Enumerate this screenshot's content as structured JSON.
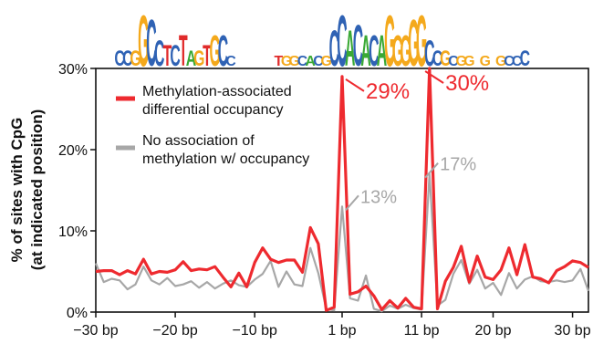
{
  "chart_data": {
    "type": "line",
    "ylabel_line1": "% of sites with CpG",
    "ylabel_line2": "(at indicated position)",
    "xlabel": "",
    "xlim": [
      -30,
      32
    ],
    "ylim": [
      0,
      30
    ],
    "x_ticks": [
      {
        "value": -30,
        "label": "−30 bp"
      },
      {
        "value": -20,
        "label": "−20 bp"
      },
      {
        "value": -10,
        "label": "−10 bp"
      },
      {
        "value": 1,
        "label": "1 bp"
      },
      {
        "value": 11,
        "label": "11 bp"
      },
      {
        "value": 20,
        "label": "20 bp"
      },
      {
        "value": 30,
        "label": "30 bp"
      }
    ],
    "y_ticks": [
      {
        "value": 0,
        "label": "0%"
      },
      {
        "value": 10,
        "label": "10%"
      },
      {
        "value": 20,
        "label": "20%"
      },
      {
        "value": 30,
        "label": "30%"
      }
    ],
    "legend": [
      {
        "line1": "Methylation-associated",
        "line2": "differential occupancy",
        "color": "#ee2a2f"
      },
      {
        "line1": "No association of",
        "line2": "methylation w/ occupancy",
        "color": "#a7a7a7"
      }
    ],
    "series": [
      {
        "color": "#ee2a2f",
        "x": [
          -30,
          -29,
          -28,
          -27,
          -26,
          -25,
          -24,
          -23,
          -22,
          -21,
          -20,
          -19,
          -18,
          -17,
          -16,
          -15,
          -14,
          -13,
          -12,
          -11,
          -10,
          -9,
          -8,
          -7,
          -6,
          -5,
          -4,
          -3,
          -2,
          -1,
          0,
          1,
          2,
          3,
          4,
          5,
          6,
          7,
          8,
          9,
          10,
          11,
          12,
          13,
          14,
          15,
          16,
          17,
          18,
          19,
          20,
          21,
          22,
          23,
          24,
          25,
          26,
          27,
          28,
          29,
          30,
          31,
          32
        ],
        "values": [
          5.0,
          5.1,
          5.1,
          4.6,
          5.1,
          4.7,
          6.5,
          4.7,
          5.0,
          4.9,
          5.2,
          6.2,
          5.1,
          5.3,
          5.2,
          5.6,
          4.3,
          3.1,
          4.8,
          3.1,
          6.1,
          7.9,
          6.5,
          6.1,
          6.4,
          6.4,
          4.9,
          10.4,
          8.4,
          0.2,
          0.6,
          29,
          2.2,
          2.5,
          3.2,
          2.0,
          0.3,
          1.4,
          0.5,
          1.7,
          0.6,
          0.4,
          30,
          0.4,
          3.8,
          5.5,
          8.1,
          3.7,
          6.9,
          4.3,
          4.0,
          5.2,
          7.9,
          4.6,
          8.3,
          4.3,
          4.1,
          3.6,
          5.1,
          5.6,
          6.3,
          6.1,
          5.5
        ]
      },
      {
        "color": "#a7a7a7",
        "x": [
          -30,
          -29,
          -28,
          -27,
          -26,
          -25,
          -24,
          -23,
          -22,
          -21,
          -20,
          -19,
          -18,
          -17,
          -16,
          -15,
          -14,
          -13,
          -12,
          -11,
          -10,
          -9,
          -8,
          -7,
          -6,
          -5,
          -4,
          -3,
          -2,
          -1,
          0,
          1,
          2,
          3,
          4,
          5,
          6,
          7,
          8,
          9,
          10,
          11,
          12,
          13,
          14,
          15,
          16,
          17,
          18,
          19,
          20,
          21,
          22,
          23,
          24,
          25,
          26,
          27,
          28,
          29,
          30,
          31,
          32
        ],
        "values": [
          6.0,
          3.7,
          4.1,
          3.9,
          2.8,
          3.4,
          5.6,
          3.9,
          3.4,
          4.2,
          3.2,
          3.4,
          3.8,
          3.0,
          3.7,
          2.9,
          3.5,
          3.9,
          3.3,
          3.1,
          4.0,
          4.7,
          6.3,
          3.1,
          5.0,
          3.4,
          3.2,
          7.9,
          4.8,
          0.4,
          0.2,
          13,
          1.7,
          1.4,
          4.5,
          0.4,
          0.1,
          0.8,
          0.4,
          0.9,
          0.5,
          0.3,
          17,
          0.8,
          1.5,
          4.7,
          6.4,
          3.5,
          5.2,
          2.9,
          3.6,
          2.1,
          4.8,
          2.9,
          4.0,
          4.4,
          3.8,
          3.7,
          3.9,
          3.7,
          3.9,
          5.3,
          2.6
        ]
      }
    ],
    "annotations": [
      {
        "text": "29%",
        "x": 1,
        "y": 29,
        "color": "#ee2a2f"
      },
      {
        "text": "30%",
        "x": 11,
        "y": 30,
        "color": "#ee2a2f"
      },
      {
        "text": "13%",
        "x": 1,
        "y": 13,
        "color": "#a7a7a7"
      },
      {
        "text": "17%",
        "x": 11,
        "y": 17,
        "color": "#a7a7a7"
      }
    ],
    "motif_logo": [
      {
        "x": -27,
        "letter": "C",
        "color": "#2f62b4",
        "h": 0.3
      },
      {
        "x": -26,
        "letter": "C",
        "color": "#2f62b4",
        "h": 0.3
      },
      {
        "x": -25,
        "letter": "G",
        "color": "#f4a91c",
        "h": 0.3
      },
      {
        "x": -24,
        "letter": "G",
        "color": "#f4a91c",
        "h": 1.0
      },
      {
        "x": -23,
        "letter": "C",
        "color": "#2f62b4",
        "h": 0.9
      },
      {
        "x": -22,
        "letter": "C",
        "color": "#2f62b4",
        "h": 0.5
      },
      {
        "x": -21,
        "letter": "T",
        "color": "#e02a2a",
        "h": 0.4
      },
      {
        "x": -20,
        "letter": "C",
        "color": "#2f62b4",
        "h": 0.4
      },
      {
        "x": -19,
        "letter": "T",
        "color": "#e02a2a",
        "h": 0.6
      },
      {
        "x": -18,
        "letter": "A",
        "color": "#3aa935",
        "h": 0.3
      },
      {
        "x": -17,
        "letter": "G",
        "color": "#f4a91c",
        "h": 0.3
      },
      {
        "x": -16,
        "letter": "T",
        "color": "#e02a2a",
        "h": 0.4
      },
      {
        "x": -15,
        "letter": "G",
        "color": "#f4a91c",
        "h": 0.6
      },
      {
        "x": -14,
        "letter": "C",
        "color": "#2f62b4",
        "h": 0.6
      },
      {
        "x": -13,
        "letter": "C",
        "color": "#2f62b4",
        "h": 0.2
      },
      {
        "x": -7,
        "letter": "T",
        "color": "#e02a2a",
        "h": 0.2
      },
      {
        "x": -6,
        "letter": "G",
        "color": "#f4a91c",
        "h": 0.2
      },
      {
        "x": -5,
        "letter": "G",
        "color": "#f4a91c",
        "h": 0.2
      },
      {
        "x": -4,
        "letter": "C",
        "color": "#2f62b4",
        "h": 0.2
      },
      {
        "x": -3,
        "letter": "A",
        "color": "#3aa935",
        "h": 0.2
      },
      {
        "x": -2,
        "letter": "C",
        "color": "#2f62b4",
        "h": 0.2
      },
      {
        "x": -1,
        "letter": "G",
        "color": "#f4a91c",
        "h": 0.2
      },
      {
        "x": 0,
        "letter": "C",
        "color": "#2f62b4",
        "h": 0.7
      },
      {
        "x": 1,
        "letter": "C",
        "color": "#2f62b4",
        "h": 1.0
      },
      {
        "x": 2,
        "letter": "A",
        "color": "#3aa935",
        "h": 0.7
      },
      {
        "x": 3,
        "letter": "C",
        "color": "#2f62b4",
        "h": 0.8
      },
      {
        "x": 4,
        "letter": "A",
        "color": "#3aa935",
        "h": 0.6
      },
      {
        "x": 5,
        "letter": "C",
        "color": "#2f62b4",
        "h": 0.6
      },
      {
        "x": 6,
        "letter": "A",
        "color": "#3aa935",
        "h": 0.6
      },
      {
        "x": 7,
        "letter": "G",
        "color": "#f4a91c",
        "h": 1.0
      },
      {
        "x": 8,
        "letter": "G",
        "color": "#f4a91c",
        "h": 0.6
      },
      {
        "x": 9,
        "letter": "G",
        "color": "#f4a91c",
        "h": 0.6
      },
      {
        "x": 10,
        "letter": "G",
        "color": "#f4a91c",
        "h": 0.9
      },
      {
        "x": 11,
        "letter": "G",
        "color": "#f4a91c",
        "h": 1.0
      },
      {
        "x": 12,
        "letter": "C",
        "color": "#2f62b4",
        "h": 0.5
      },
      {
        "x": 13,
        "letter": "C",
        "color": "#2f62b4",
        "h": 0.3
      },
      {
        "x": 14,
        "letter": "G",
        "color": "#f4a91c",
        "h": 0.3
      },
      {
        "x": 15,
        "letter": "C",
        "color": "#2f62b4",
        "h": 0.2
      },
      {
        "x": 16,
        "letter": "G",
        "color": "#f4a91c",
        "h": 0.2
      },
      {
        "x": 17,
        "letter": "G",
        "color": "#f4a91c",
        "h": 0.2
      },
      {
        "x": 19,
        "letter": "G",
        "color": "#f4a91c",
        "h": 0.2
      },
      {
        "x": 21,
        "letter": "G",
        "color": "#f4a91c",
        "h": 0.2
      },
      {
        "x": 22,
        "letter": "C",
        "color": "#2f62b4",
        "h": 0.2
      },
      {
        "x": 23,
        "letter": "C",
        "color": "#2f62b4",
        "h": 0.2
      },
      {
        "x": 24,
        "letter": "C",
        "color": "#2f62b4",
        "h": 0.3
      }
    ]
  }
}
